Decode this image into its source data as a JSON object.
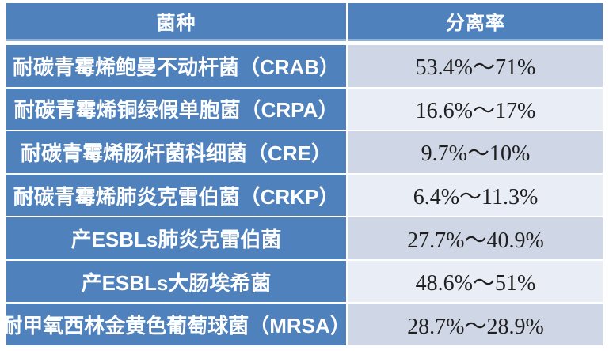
{
  "chart_data": {
    "type": "table",
    "columns": [
      "菌种",
      "分离率"
    ],
    "rows": [
      [
        "耐碳青霉烯鲍曼不动杆菌（CRAB）",
        "53.4%～71%"
      ],
      [
        "耐碳青霉烯铜绿假单胞菌（CRPA）",
        "16.6%～17%"
      ],
      [
        "耐碳青霉烯肠杆菌科细菌（CRE）",
        "9.7%～10%"
      ],
      [
        "耐碳青霉烯肺炎克雷伯菌（CRKP）",
        "6.4%～11.3%"
      ],
      [
        "产ESBLs肺炎克雷伯菌",
        "27.7%～40.9%"
      ],
      [
        "产ESBLs大肠埃希菌",
        "48.6%～51%"
      ],
      [
        "耐甲氧西林金黄色葡萄球菌（MRSA）",
        "28.7%～28.9%"
      ]
    ],
    "layout": {
      "header_position": "top",
      "grid": "white gaps between cells",
      "row_banding_column2": [
        "#cfd6e5",
        "#e9edf6"
      ]
    },
    "colors": {
      "header_bg": "#4f81bc",
      "species_col_bg": "#4f81bc",
      "header_bottom_edge": "#8fb0d5",
      "rate_row_odd_bg": "#cfd6e5",
      "rate_row_even_bg": "#e9edf6",
      "header_text": "#ffffff",
      "species_text": "#ffffff",
      "rate_text": "#1f1f1f",
      "gridline": "#ffffff"
    }
  }
}
